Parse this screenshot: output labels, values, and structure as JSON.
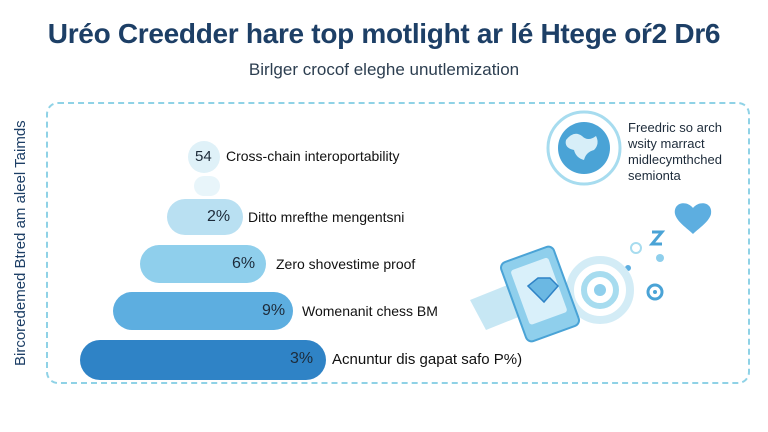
{
  "header": {
    "title": "Uréo Creedder hare top motlight ar lé Htege oŕ2 Dr6",
    "subtitle": "Birlger crocof eleghe unutlemization"
  },
  "side_label": "Bircoredemed Btred am aleel Taimds",
  "pyramid": {
    "tiers": [
      {
        "pct": "54",
        "label": "Cross-chain interoportability",
        "color": "#dff1f8"
      },
      {
        "pct": "2%",
        "label": "Ditto mrefthe mengentsni",
        "color": "#b9e0f2"
      },
      {
        "pct": "6%",
        "label": "Zero shovestime proof",
        "color": "#8fcfec"
      },
      {
        "pct": "9%",
        "label": "Womenanit chess BM",
        "color": "#5daee0"
      },
      {
        "pct": "3%",
        "label": "Acnuntur dis gapat safo P%)",
        "color": "#2f83c6"
      }
    ]
  },
  "side_note": {
    "lines": [
      "Freedric so arch",
      "wsity marract",
      "midlecymthched",
      "semionta"
    ]
  },
  "icons": [
    "globe-icon",
    "heart-icon",
    "diamond-icon",
    "phone-icon",
    "network-icon",
    "gear-icon",
    "music-note-icon"
  ]
}
